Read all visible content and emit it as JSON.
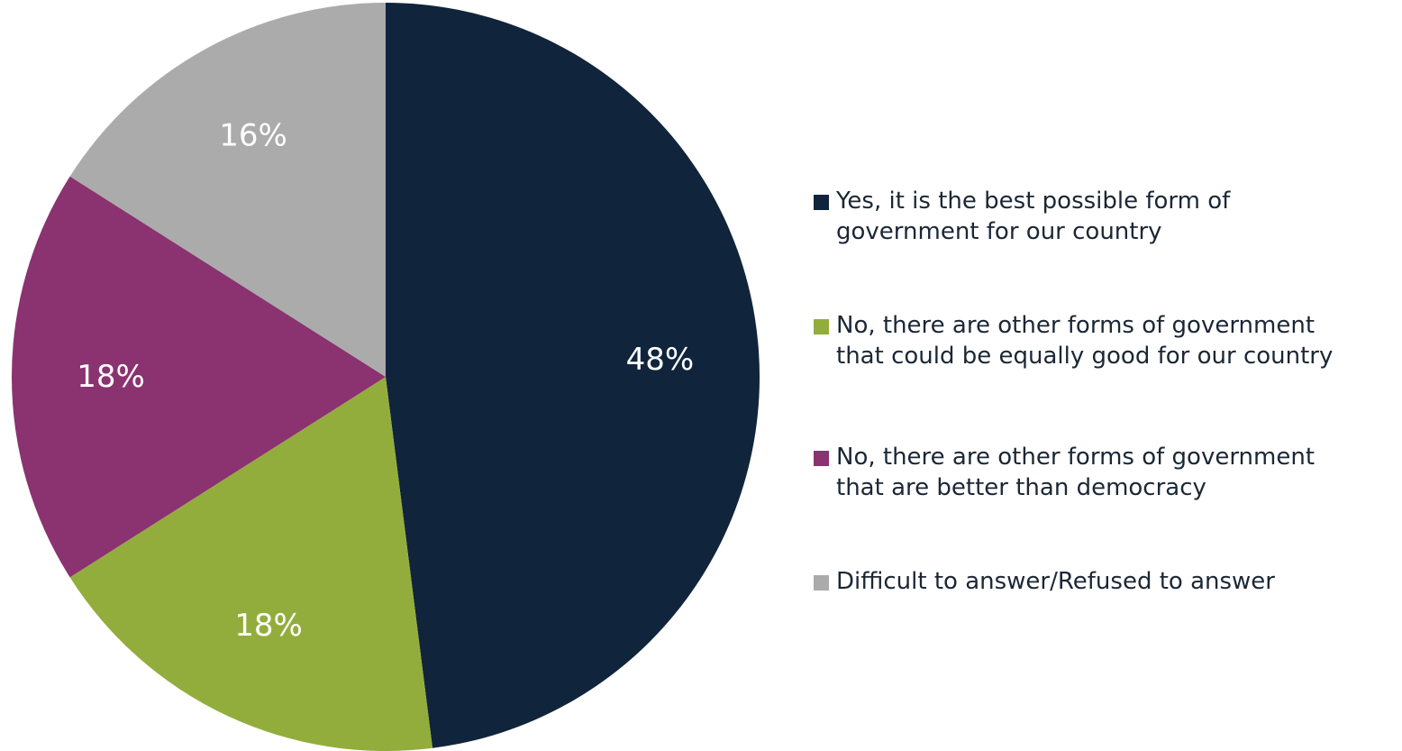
{
  "chart_data": {
    "type": "pie",
    "title": "",
    "slices": [
      {
        "label": "Yes, it is the best possible form of government for our country",
        "value": 48,
        "display": "48%",
        "color": "#10243c"
      },
      {
        "label": "No, there are other forms of government that could be equally good for our country",
        "value": 18,
        "display": "18%",
        "color": "#93ad3d"
      },
      {
        "label": "No, there are other forms of government that are better than democracy",
        "value": 18,
        "display": "18%",
        "color": "#8b3270"
      },
      {
        "label": "Difficult to answer/Refused to answer",
        "value": 16,
        "display": "16%",
        "color": "#ababab"
      }
    ],
    "start_angle_deg": 0,
    "direction": "clockwise",
    "legend_position": "right"
  },
  "legend": {
    "items": [
      {
        "lines": [
          "Yes, it is the best possible form of",
          "government for our country"
        ],
        "color": "#10243c"
      },
      {
        "lines": [
          "No, there are other forms of government",
          "that could be equally good for our country"
        ],
        "color": "#93ad3d"
      },
      {
        "lines": [
          "No, there are other forms of government",
          "that are better than democracy"
        ],
        "color": "#8b3270"
      },
      {
        "lines": [
          "Difficult to answer/Refused to answer"
        ],
        "color": "#ababab"
      }
    ]
  }
}
